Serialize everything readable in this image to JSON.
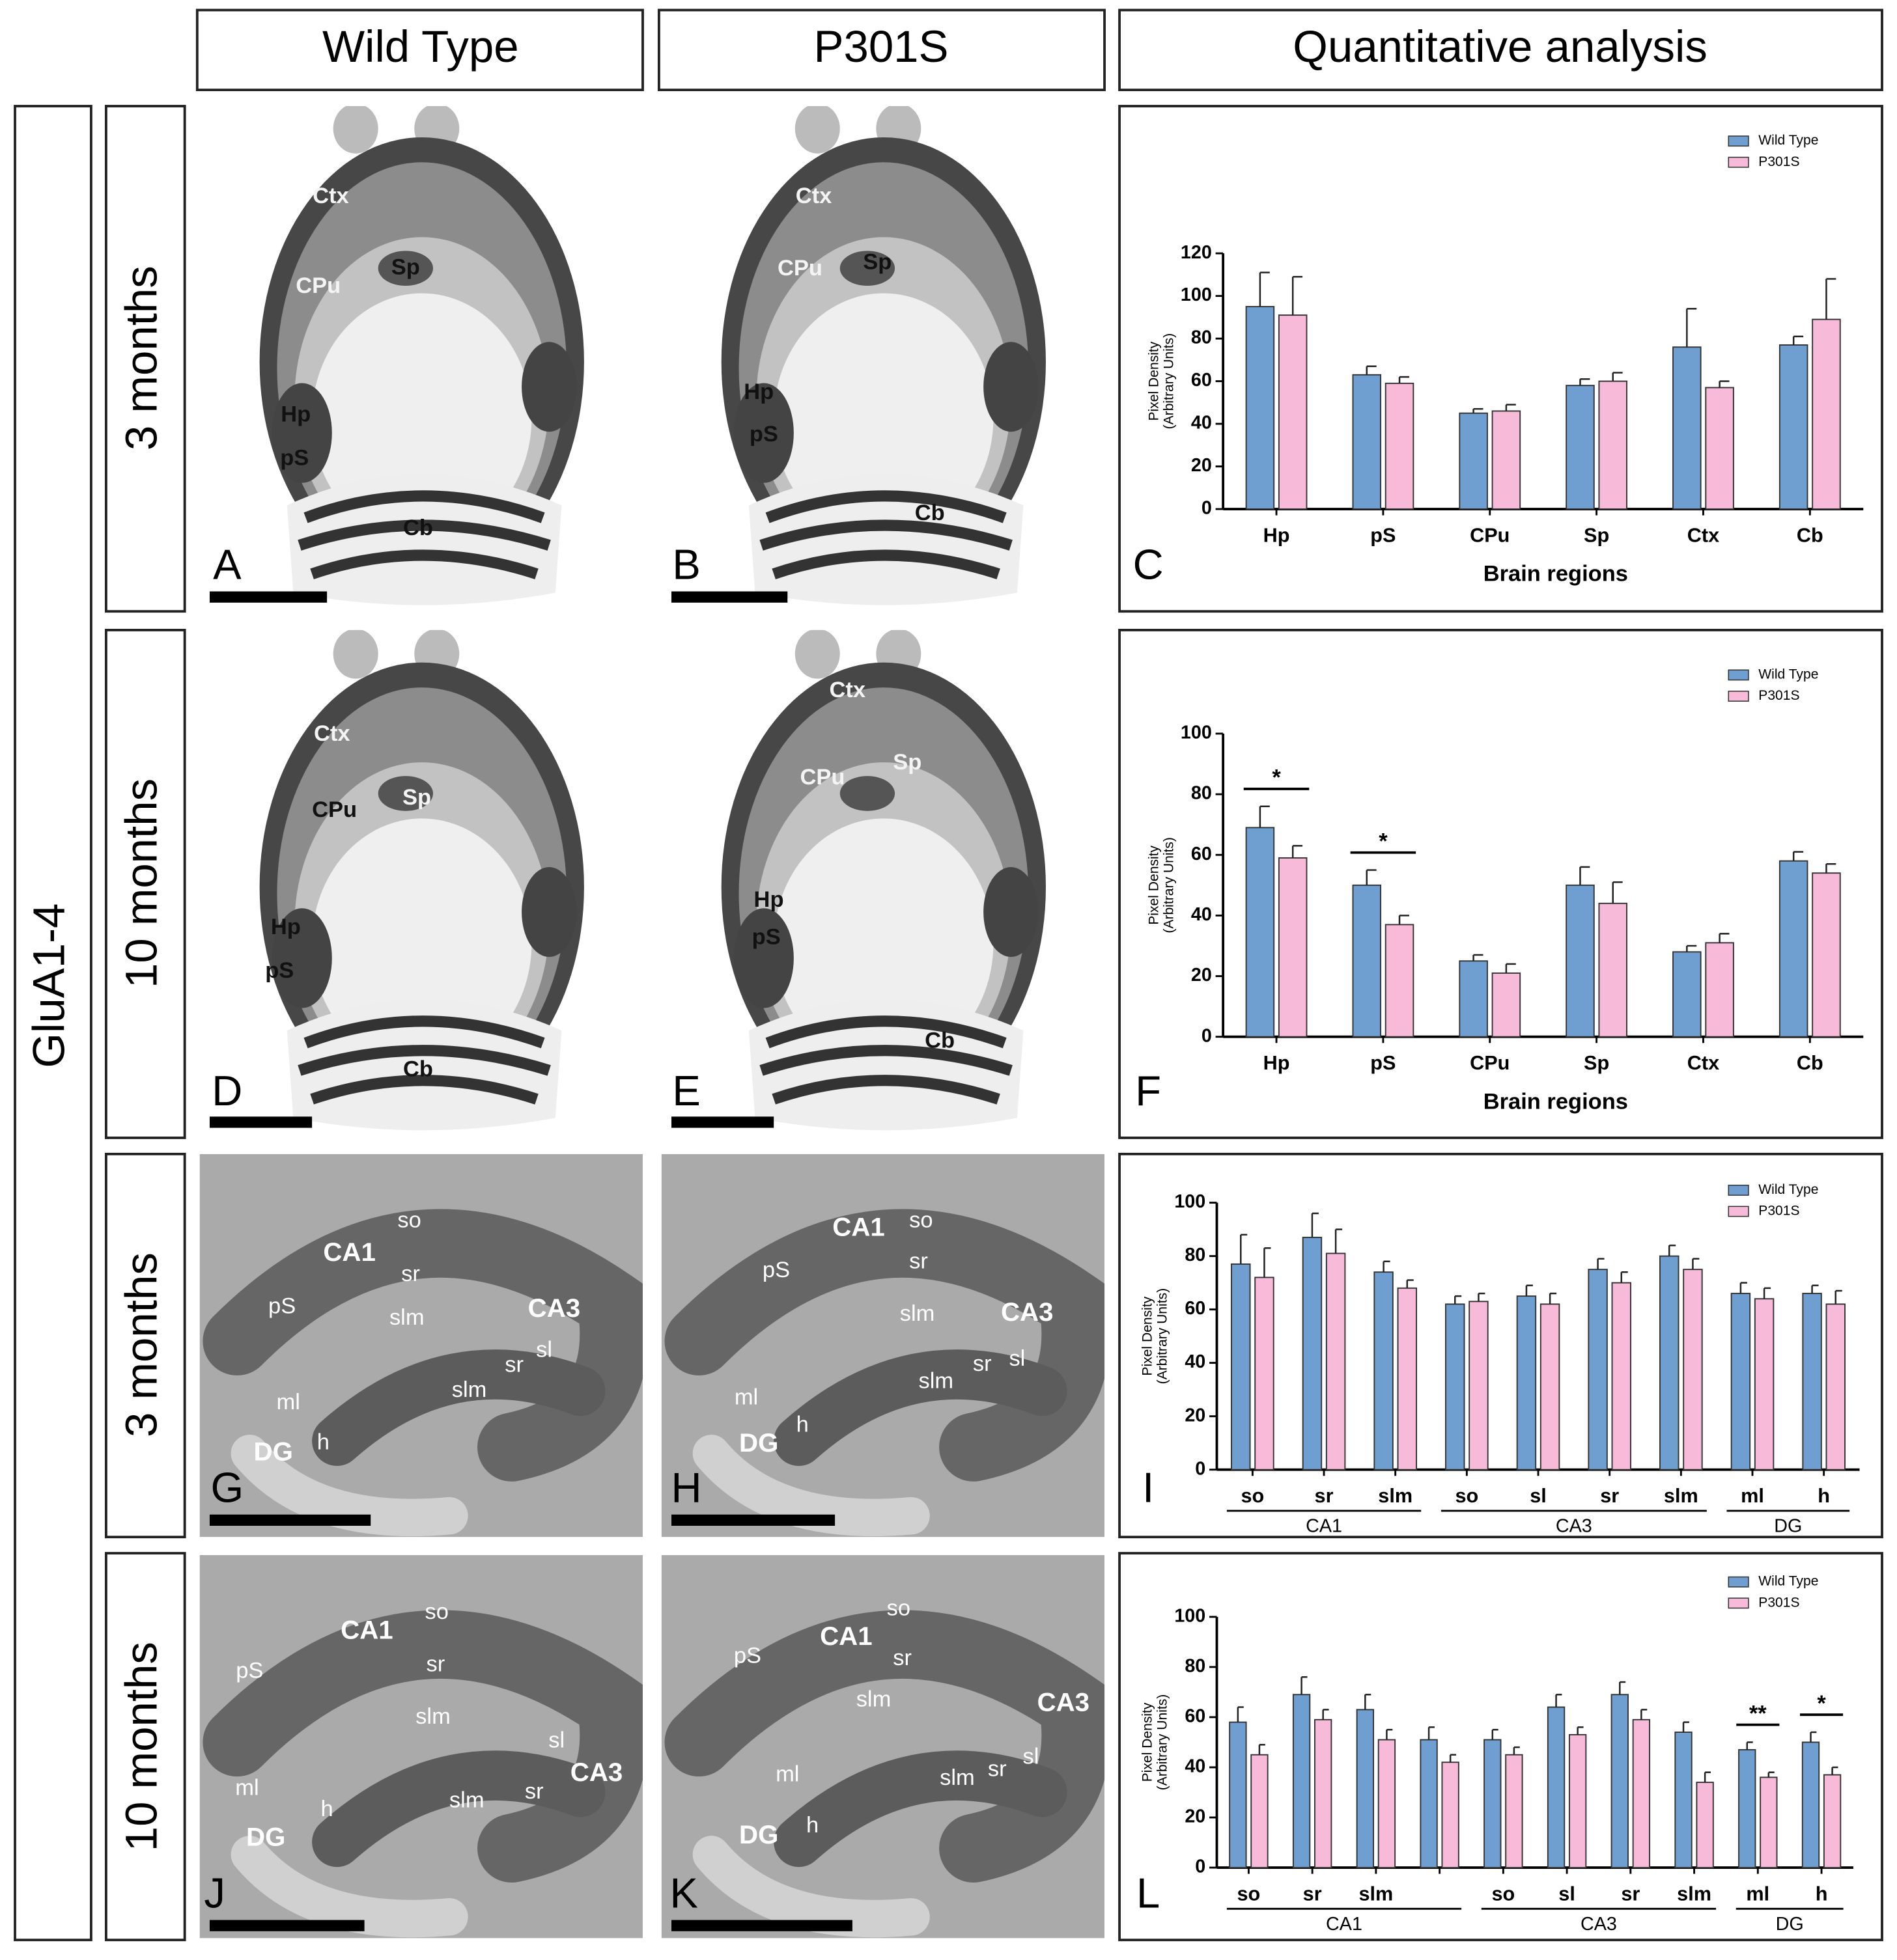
{
  "headers": [
    "Wild Type",
    "P301S",
    "Quantitative analysis"
  ],
  "side_label": "GluA1-4",
  "row_labels": [
    "3 months",
    "10 months",
    "3 months",
    "10 months"
  ],
  "panels": [
    {
      "letter": "A",
      "labels": [
        "Ctx",
        "Sp",
        "CPu",
        "Hp",
        "pS",
        "Cb"
      ]
    },
    {
      "letter": "B",
      "labels": [
        "Ctx",
        "Sp",
        "CPu",
        "Hp",
        "pS",
        "Cb"
      ]
    },
    {
      "letter": "D",
      "labels": [
        "Ctx",
        "CPu",
        "Sp",
        "Hp",
        "pS",
        "Cb"
      ]
    },
    {
      "letter": "E",
      "labels": [
        "Ctx",
        "CPu",
        "Sp",
        "Hp",
        "pS",
        "Cb"
      ]
    },
    {
      "letter": "G",
      "labels": [
        "so",
        "CA1",
        "sr",
        "pS",
        "slm",
        "CA3",
        "sl",
        "sr",
        "slm",
        "ml",
        "h",
        "DG"
      ]
    },
    {
      "letter": "H",
      "labels": [
        "so",
        "CA1",
        "sr",
        "pS",
        "slm",
        "CA3",
        "sl",
        "sr",
        "slm",
        "ml",
        "h",
        "DG"
      ]
    },
    {
      "letter": "J",
      "labels": [
        "so",
        "CA1",
        "sr",
        "pS",
        "slm",
        "sl",
        "CA3",
        "sr",
        "slm",
        "ml",
        "h",
        "DG"
      ]
    },
    {
      "letter": "K",
      "labels": [
        "so",
        "CA1",
        "sr",
        "pS",
        "slm",
        "CA3",
        "sl",
        "sr",
        "slm",
        "ml",
        "h",
        "DG"
      ]
    }
  ],
  "chart_data": [
    {
      "type": "bar",
      "panel_label": "C",
      "y_label": [
        "Pixel Density",
        "(Arbitrary Units)"
      ],
      "x_label": "Brain regions",
      "categories": [
        "Hp",
        "pS",
        "CPu",
        "Sp",
        "Ctx",
        "Cb"
      ],
      "series": [
        {
          "name": "Wild Type",
          "color": "#6f9fd0",
          "values": [
            95,
            63,
            45,
            58,
            76,
            77
          ],
          "errors": [
            16,
            4,
            2,
            3,
            18,
            4
          ]
        },
        {
          "name": "P301S",
          "color": "#f7bad9",
          "values": [
            91,
            59,
            46,
            60,
            57,
            89
          ],
          "errors": [
            18,
            3,
            3,
            4,
            3,
            19
          ]
        }
      ],
      "ylim": [
        0,
        120
      ],
      "yticks": [
        0,
        20,
        40,
        60,
        80,
        100,
        120
      ],
      "legend": "upper right"
    },
    {
      "type": "bar",
      "panel_label": "F",
      "y_label": [
        "Pixel Density",
        "(Arbitrary Units)"
      ],
      "x_label": "Brain regions",
      "categories": [
        "Hp",
        "pS",
        "CPu",
        "Sp",
        "Ctx",
        "Cb"
      ],
      "series": [
        {
          "name": "Wild Type",
          "color": "#6f9fd0",
          "values": [
            69,
            50,
            25,
            50,
            28,
            58
          ],
          "errors": [
            7,
            5,
            2,
            6,
            2,
            3
          ]
        },
        {
          "name": "P301S",
          "color": "#f7bad9",
          "values": [
            59,
            37,
            21,
            44,
            31,
            54
          ],
          "errors": [
            4,
            3,
            3,
            7,
            3,
            3
          ]
        }
      ],
      "significance": [
        "*",
        "*",
        null,
        null,
        null,
        null
      ],
      "ylim": [
        0,
        100
      ],
      "yticks": [
        0,
        20,
        40,
        60,
        80,
        100
      ],
      "legend": "upper right"
    },
    {
      "type": "bar",
      "panel_label": "I",
      "y_label": [
        "Pixel Density",
        "(Arbitrary Units)"
      ],
      "categories": [
        "so",
        "sr",
        "slm",
        "so",
        "sl",
        "sr",
        "slm",
        "ml",
        "h"
      ],
      "category_groups": [
        "CA1",
        "CA1",
        "CA1",
        "CA3",
        "CA3",
        "CA3",
        "CA3",
        "DG",
        "DG"
      ],
      "series": [
        {
          "name": "Wild Type",
          "color": "#6f9fd0",
          "values": [
            77,
            87,
            74,
            62,
            65,
            75,
            80,
            66,
            66
          ],
          "errors": [
            11,
            9,
            4,
            3,
            4,
            4,
            4,
            4,
            3
          ]
        },
        {
          "name": "P301S",
          "color": "#f7bad9",
          "values": [
            72,
            81,
            68,
            63,
            62,
            70,
            75,
            64,
            62
          ],
          "errors": [
            11,
            9,
            3,
            3,
            4,
            4,
            4,
            4,
            5
          ]
        }
      ],
      "ylim": [
        0,
        100
      ],
      "yticks": [
        0,
        20,
        40,
        60,
        80,
        100
      ],
      "legend": "upper right"
    },
    {
      "type": "bar",
      "panel_label": "L",
      "y_label": [
        "Pixel Density",
        "(Arbitrary Units)"
      ],
      "categories": [
        "so",
        "sr",
        "slm",
        null,
        "so",
        "sl",
        "sr",
        "slm",
        "ml",
        "h"
      ],
      "category_groups": [
        "CA1",
        "CA1",
        "CA1",
        "CA1",
        "CA3",
        "CA3",
        "CA3",
        "CA3",
        "DG",
        "DG"
      ],
      "series": [
        {
          "name": "Wild Type",
          "color": "#6f9fd0",
          "values": [
            58,
            69,
            63,
            51,
            51,
            64,
            69,
            54,
            47,
            50
          ],
          "errors": [
            6,
            7,
            6,
            5,
            4,
            5,
            5,
            4,
            3,
            4
          ]
        },
        {
          "name": "P301S",
          "color": "#f7bad9",
          "values": [
            45,
            59,
            51,
            42,
            45,
            53,
            59,
            34,
            36,
            37
          ],
          "errors": [
            4,
            4,
            4,
            3,
            3,
            3,
            4,
            4,
            2,
            3
          ]
        }
      ],
      "significance": [
        null,
        null,
        null,
        null,
        null,
        null,
        null,
        null,
        "**",
        "*"
      ],
      "ylim": [
        0,
        100
      ],
      "yticks": [
        0,
        20,
        40,
        60,
        80,
        100
      ],
      "legend": "upper right"
    }
  ]
}
